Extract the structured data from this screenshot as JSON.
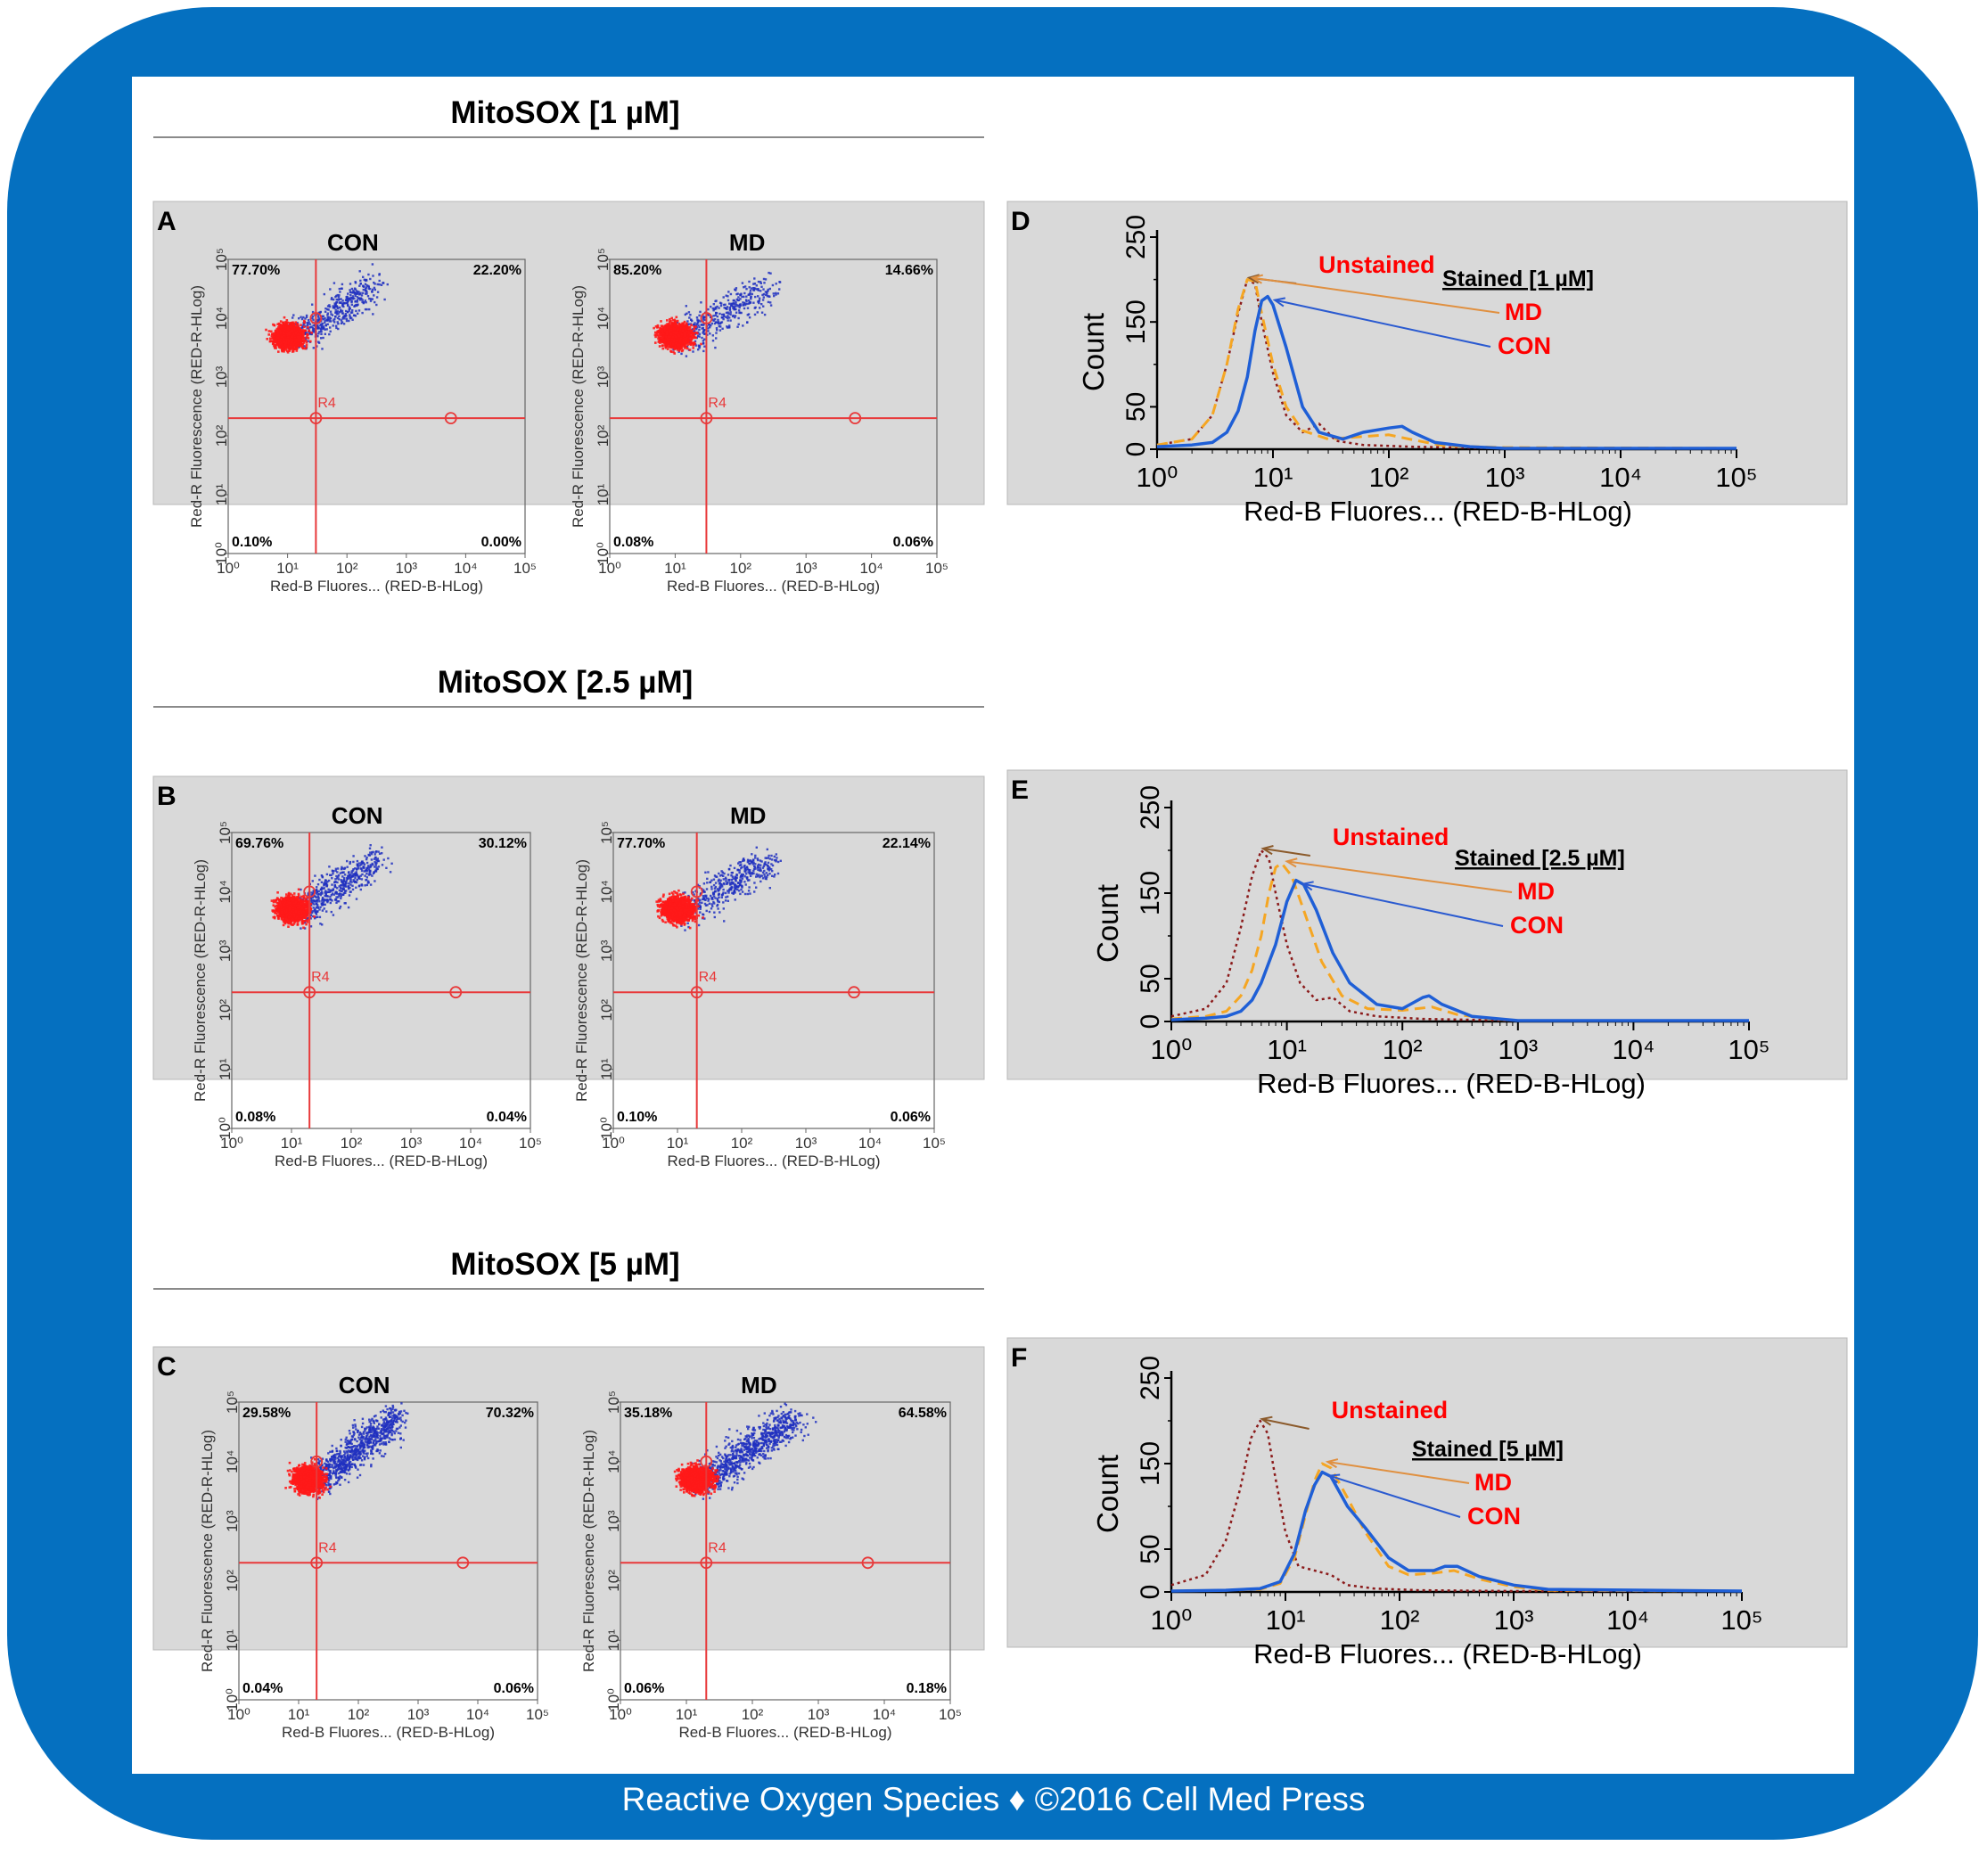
{
  "footer": "Reactive Oxygen Species ♦ ©2016 Cell Med Press",
  "colors": {
    "frame": "#0570c0",
    "panel_bg": "#d9d9d9",
    "gate": "#e8393a",
    "red_dots": "#ff1a1a",
    "blue_dots": "#2030c0",
    "unstained": "#8b1a1a",
    "md": "#f5a623",
    "con": "#1f5fd6",
    "label_red": "#ff0000"
  },
  "sections": [
    {
      "title": "MitoSOX [1 µM]"
    },
    {
      "title": "MitoSOX [2.5 µM]"
    },
    {
      "title": "MitoSOX [5 µM]"
    }
  ],
  "tick_labels": [
    "10⁰",
    "10¹",
    "10²",
    "10³",
    "10⁴",
    "10⁵"
  ],
  "chart_data": [
    {
      "panel": "A",
      "type": "scatter",
      "xlabel": "Red-B Fluores... (RED-B-HLog)",
      "ylabel": "Red-R Fluorescence (RED-R-HLog)",
      "x_scale": "log",
      "y_scale": "log",
      "xlim": [
        1,
        100000
      ],
      "ylim": [
        1,
        100000
      ],
      "gate_label": "R4",
      "plots": [
        {
          "title": "CON",
          "gate_x": 30,
          "gate_y": 200,
          "quadrants": {
            "ul": "77.70%",
            "ur": "22.20%",
            "ll": "0.10%",
            "lr": "0.00%"
          }
        },
        {
          "title": "MD",
          "gate_x": 30,
          "gate_y": 200,
          "quadrants": {
            "ul": "85.20%",
            "ur": "14.66%",
            "ll": "0.08%",
            "lr": "0.06%"
          }
        }
      ]
    },
    {
      "panel": "B",
      "type": "scatter",
      "xlabel": "Red-B Fluores... (RED-B-HLog)",
      "ylabel": "Red-R Fluorescence (RED-R-HLog)",
      "x_scale": "log",
      "y_scale": "log",
      "xlim": [
        1,
        100000
      ],
      "ylim": [
        1,
        100000
      ],
      "gate_label": "R4",
      "plots": [
        {
          "title": "CON",
          "gate_x": 20,
          "gate_y": 200,
          "quadrants": {
            "ul": "69.76%",
            "ur": "30.12%",
            "ll": "0.08%",
            "lr": "0.04%"
          }
        },
        {
          "title": "MD",
          "gate_x": 20,
          "gate_y": 200,
          "quadrants": {
            "ul": "77.70%",
            "ur": "22.14%",
            "ll": "0.10%",
            "lr": "0.06%"
          }
        }
      ]
    },
    {
      "panel": "C",
      "type": "scatter",
      "xlabel": "Red-B Fluores... (RED-B-HLog)",
      "ylabel": "Red-R Fluorescence (RED-R-HLog)",
      "x_scale": "log",
      "y_scale": "log",
      "xlim": [
        1,
        100000
      ],
      "ylim": [
        1,
        100000
      ],
      "gate_label": "R4",
      "plots": [
        {
          "title": "CON",
          "gate_x": 20,
          "gate_y": 200,
          "quadrants": {
            "ul": "29.58%",
            "ur": "70.32%",
            "ll": "0.04%",
            "lr": "0.06%"
          }
        },
        {
          "title": "MD",
          "gate_x": 20,
          "gate_y": 200,
          "quadrants": {
            "ul": "35.18%",
            "ur": "64.58%",
            "ll": "0.06%",
            "lr": "0.18%"
          }
        }
      ]
    },
    {
      "panel": "D",
      "type": "line",
      "xlabel": "Red-B Fluores... (RED-B-HLog)",
      "ylabel": "Count",
      "x_scale": "log",
      "xlim": [
        1,
        100000
      ],
      "ylim": [
        0,
        250
      ],
      "yticks": [
        "0",
        "50",
        "150",
        "250"
      ],
      "legend_title": "Stained [1 µM]",
      "series": [
        {
          "name": "Unstained",
          "style": "dotted",
          "points": [
            [
              1,
              5
            ],
            [
              2,
              12
            ],
            [
              3,
              40
            ],
            [
              4,
              100
            ],
            [
              5,
              160
            ],
            [
              6,
              200
            ],
            [
              7,
              195
            ],
            [
              8,
              150
            ],
            [
              10,
              90
            ],
            [
              13,
              40
            ],
            [
              18,
              20
            ],
            [
              25,
              30
            ],
            [
              35,
              10
            ],
            [
              60,
              5
            ],
            [
              150,
              3
            ],
            [
              1000,
              1
            ],
            [
              100000,
              1
            ]
          ]
        },
        {
          "name": "MD",
          "style": "dashed",
          "points": [
            [
              1,
              5
            ],
            [
              2,
              12
            ],
            [
              3,
              40
            ],
            [
              4,
              100
            ],
            [
              5,
              165
            ],
            [
              6,
              200
            ],
            [
              7,
              198
            ],
            [
              8,
              160
            ],
            [
              10,
              100
            ],
            [
              13,
              50
            ],
            [
              18,
              22
            ],
            [
              30,
              12
            ],
            [
              60,
              15
            ],
            [
              100,
              17
            ],
            [
              150,
              12
            ],
            [
              300,
              4
            ],
            [
              1000,
              2
            ],
            [
              100000,
              1
            ]
          ]
        },
        {
          "name": "CON",
          "style": "solid",
          "points": [
            [
              1,
              3
            ],
            [
              2,
              5
            ],
            [
              3,
              8
            ],
            [
              4,
              20
            ],
            [
              5,
              45
            ],
            [
              6,
              85
            ],
            [
              7,
              140
            ],
            [
              8,
              175
            ],
            [
              9,
              180
            ],
            [
              10,
              170
            ],
            [
              13,
              120
            ],
            [
              18,
              50
            ],
            [
              25,
              20
            ],
            [
              40,
              12
            ],
            [
              60,
              20
            ],
            [
              100,
              25
            ],
            [
              130,
              27
            ],
            [
              160,
              20
            ],
            [
              250,
              8
            ],
            [
              500,
              3
            ],
            [
              1000,
              1
            ],
            [
              100000,
              1
            ]
          ]
        }
      ]
    },
    {
      "panel": "E",
      "type": "line",
      "xlabel": "Red-B Fluores... (RED-B-HLog)",
      "ylabel": "Count",
      "x_scale": "log",
      "xlim": [
        1,
        100000
      ],
      "ylim": [
        0,
        250
      ],
      "yticks": [
        "0",
        "50",
        "150",
        "250"
      ],
      "legend_title": "Stained [2.5 µM]",
      "series": [
        {
          "name": "Unstained",
          "style": "dotted",
          "points": [
            [
              1,
              6
            ],
            [
              2,
              15
            ],
            [
              3,
              45
            ],
            [
              4,
              110
            ],
            [
              5,
              170
            ],
            [
              6,
              200
            ],
            [
              7,
              190
            ],
            [
              8,
              150
            ],
            [
              10,
              90
            ],
            [
              13,
              45
            ],
            [
              18,
              25
            ],
            [
              25,
              28
            ],
            [
              35,
              12
            ],
            [
              60,
              6
            ],
            [
              150,
              3
            ],
            [
              1000,
              1
            ],
            [
              100000,
              1
            ]
          ]
        },
        {
          "name": "MD",
          "style": "dashed",
          "points": [
            [
              1,
              3
            ],
            [
              2,
              6
            ],
            [
              3,
              12
            ],
            [
              4,
              30
            ],
            [
              5,
              60
            ],
            [
              6,
              100
            ],
            [
              7,
              150
            ],
            [
              8,
              180
            ],
            [
              9,
              185
            ],
            [
              11,
              170
            ],
            [
              14,
              130
            ],
            [
              20,
              70
            ],
            [
              30,
              30
            ],
            [
              50,
              15
            ],
            [
              100,
              13
            ],
            [
              180,
              17
            ],
            [
              300,
              8
            ],
            [
              600,
              3
            ],
            [
              1000,
              1
            ],
            [
              100000,
              1
            ]
          ]
        },
        {
          "name": "CON",
          "style": "solid",
          "points": [
            [
              1,
              2
            ],
            [
              2,
              4
            ],
            [
              3,
              6
            ],
            [
              4,
              12
            ],
            [
              5,
              25
            ],
            [
              6,
              45
            ],
            [
              8,
              90
            ],
            [
              10,
              140
            ],
            [
              12,
              165
            ],
            [
              14,
              160
            ],
            [
              18,
              130
            ],
            [
              25,
              80
            ],
            [
              35,
              45
            ],
            [
              60,
              20
            ],
            [
              100,
              15
            ],
            [
              150,
              28
            ],
            [
              170,
              30
            ],
            [
              220,
              20
            ],
            [
              400,
              6
            ],
            [
              1000,
              1
            ],
            [
              100000,
              1
            ]
          ]
        }
      ]
    },
    {
      "panel": "F",
      "type": "line",
      "xlabel": "Red-B Fluores... (RED-B-HLog)",
      "ylabel": "Count",
      "x_scale": "log",
      "xlim": [
        1,
        100000
      ],
      "ylim": [
        0,
        250
      ],
      "yticks": [
        "0",
        "50",
        "150",
        "250"
      ],
      "legend_title": "Stained [5 µM]",
      "series": [
        {
          "name": "Unstained",
          "style": "dotted",
          "points": [
            [
              1,
              8
            ],
            [
              2,
              20
            ],
            [
              3,
              60
            ],
            [
              4,
              120
            ],
            [
              5,
              180
            ],
            [
              6,
              200
            ],
            [
              7,
              185
            ],
            [
              8,
              140
            ],
            [
              10,
              70
            ],
            [
              13,
              30
            ],
            [
              18,
              25
            ],
            [
              25,
              20
            ],
            [
              35,
              8
            ],
            [
              60,
              4
            ],
            [
              150,
              2
            ],
            [
              1000,
              1
            ],
            [
              100000,
              1
            ]
          ]
        },
        {
          "name": "MD",
          "style": "dashed",
          "points": [
            [
              1,
              1
            ],
            [
              3,
              2
            ],
            [
              6,
              3
            ],
            [
              9,
              10
            ],
            [
              12,
              40
            ],
            [
              15,
              90
            ],
            [
              18,
              130
            ],
            [
              21,
              150
            ],
            [
              25,
              145
            ],
            [
              35,
              110
            ],
            [
              50,
              70
            ],
            [
              80,
              30
            ],
            [
              120,
              20
            ],
            [
              200,
              22
            ],
            [
              300,
              25
            ],
            [
              500,
              15
            ],
            [
              1000,
              6
            ],
            [
              2000,
              2
            ],
            [
              100000,
              1
            ]
          ]
        },
        {
          "name": "CON",
          "style": "solid",
          "points": [
            [
              1,
              1
            ],
            [
              3,
              2
            ],
            [
              6,
              4
            ],
            [
              9,
              12
            ],
            [
              12,
              45
            ],
            [
              15,
              95
            ],
            [
              18,
              125
            ],
            [
              21,
              140
            ],
            [
              25,
              135
            ],
            [
              35,
              100
            ],
            [
              50,
              75
            ],
            [
              80,
              40
            ],
            [
              120,
              25
            ],
            [
              200,
              25
            ],
            [
              250,
              30
            ],
            [
              320,
              30
            ],
            [
              500,
              18
            ],
            [
              1000,
              8
            ],
            [
              2000,
              3
            ],
            [
              100000,
              1
            ]
          ]
        }
      ]
    }
  ]
}
